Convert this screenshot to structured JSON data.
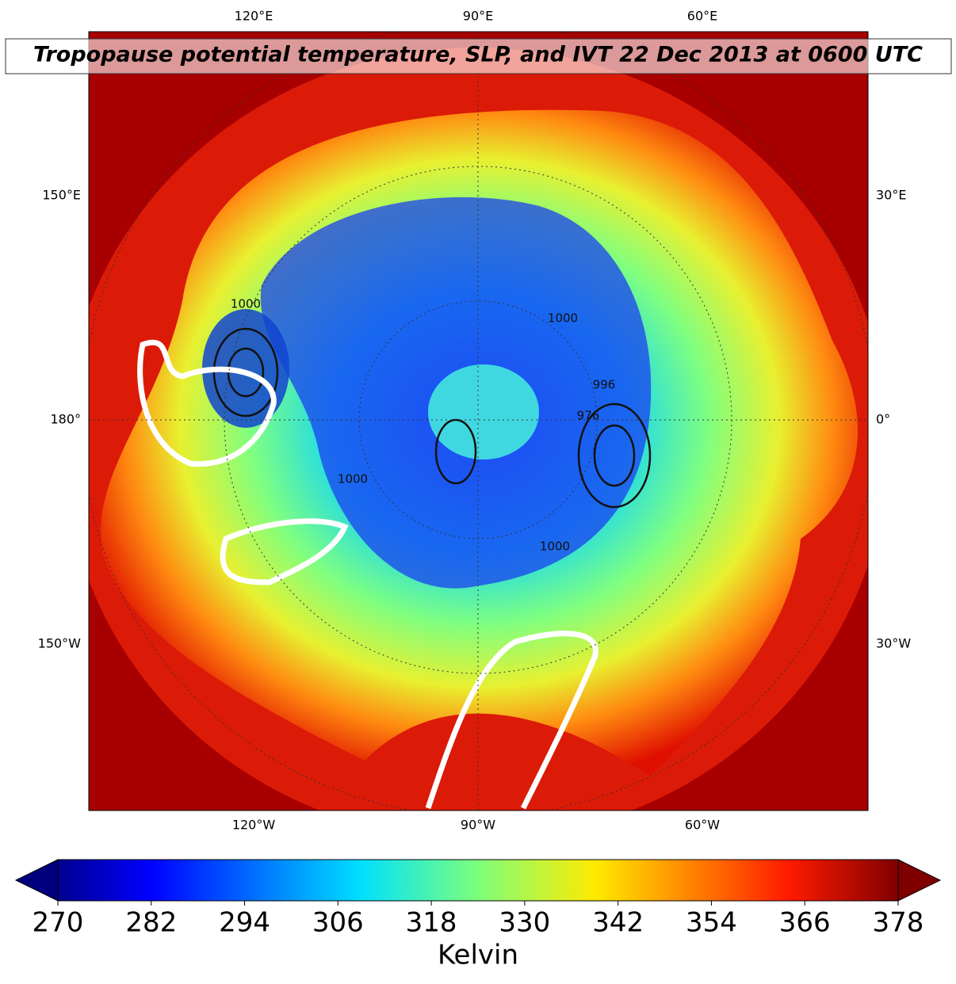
{
  "title": "Tropopause potential temperature, SLP, and IVT 22 Dec 2013 at 0600 UTC",
  "longitude_labels": {
    "top": [
      "120°E",
      "90°E",
      "60°E"
    ],
    "left": [
      "150°E",
      "180°",
      "150°W"
    ],
    "right": [
      "30°E",
      "0°",
      "30°W"
    ],
    "bottom": [
      "120°W",
      "90°W",
      "60°W"
    ]
  },
  "contour_labels": [
    "1000",
    "1000",
    "996",
    "976",
    "1000",
    "1000"
  ],
  "colorbar": {
    "label": "Kelvin",
    "range": [
      270,
      378
    ],
    "ticks": [
      270,
      282,
      294,
      306,
      318,
      330,
      342,
      354,
      366,
      378
    ],
    "colormap": "jet"
  }
}
